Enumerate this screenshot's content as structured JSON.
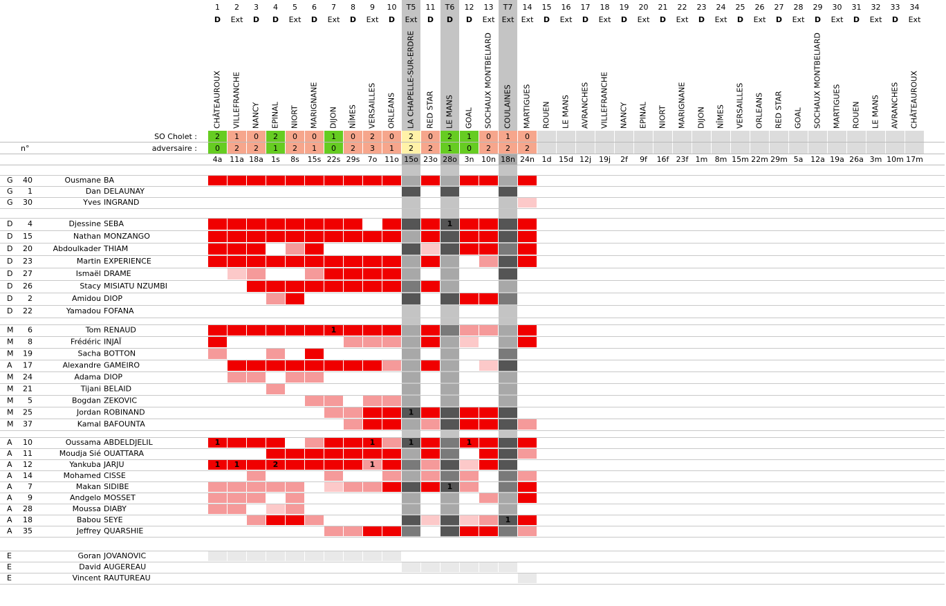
{
  "header": {
    "so_label": "SO Cholet :",
    "adv_label": "adversaire :",
    "num_label": "n°"
  },
  "matches": [
    {
      "n": "1",
      "venue": "D",
      "opponent": "CHÂTEAUROUX",
      "cholet": 2,
      "adversaire": 0,
      "date": "4a"
    },
    {
      "n": "2",
      "venue": "Ext",
      "opponent": "VILLEFRANCHE",
      "cholet": 1,
      "adversaire": 2,
      "date": "11a"
    },
    {
      "n": "3",
      "venue": "D",
      "opponent": "NANCY",
      "cholet": 0,
      "adversaire": 2,
      "date": "18a"
    },
    {
      "n": "4",
      "venue": "D",
      "opponent": "EPINAL",
      "cholet": 2,
      "adversaire": 1,
      "date": "1s"
    },
    {
      "n": "5",
      "venue": "Ext",
      "opponent": "NIORT",
      "cholet": 0,
      "adversaire": 2,
      "date": "8s"
    },
    {
      "n": "6",
      "venue": "D",
      "opponent": "MARIGNANE",
      "cholet": 0,
      "adversaire": 1,
      "date": "15s"
    },
    {
      "n": "7",
      "venue": "Ext",
      "opponent": "DIJON",
      "cholet": 1,
      "adversaire": 0,
      "date": "22s"
    },
    {
      "n": "8",
      "venue": "D",
      "opponent": "NÎMES",
      "cholet": 0,
      "adversaire": 2,
      "date": "29s"
    },
    {
      "n": "9",
      "venue": "Ext",
      "opponent": "VERSAILLES",
      "cholet": 2,
      "adversaire": 3,
      "date": "7o"
    },
    {
      "n": "10",
      "venue": "D",
      "opponent": "ORLEANS",
      "cholet": 0,
      "adversaire": 1,
      "date": "11o"
    },
    {
      "n": "T5",
      "venue": "Ext",
      "opponent": "LA CHAPELLE-SUR-ERDRE",
      "cholet": 2,
      "adversaire": 2,
      "date": "15o"
    },
    {
      "n": "11",
      "venue": "D",
      "opponent": "RED STAR",
      "cholet": 0,
      "adversaire": 2,
      "date": "23o"
    },
    {
      "n": "T6",
      "venue": "D",
      "opponent": "LE MANS",
      "cholet": 2,
      "adversaire": 1,
      "date": "28o"
    },
    {
      "n": "12",
      "venue": "D",
      "opponent": "GOAL",
      "cholet": 1,
      "adversaire": 0,
      "date": "3n"
    },
    {
      "n": "13",
      "venue": "Ext",
      "opponent": "SOCHAUX MONTBELIARD",
      "cholet": 0,
      "adversaire": 2,
      "date": "10n"
    },
    {
      "n": "T7",
      "venue": "Ext",
      "opponent": "COULAINES",
      "cholet": 1,
      "adversaire": 2,
      "date": "18n"
    },
    {
      "n": "14",
      "venue": "Ext",
      "opponent": "MARTIGUES",
      "cholet": 0,
      "adversaire": 2,
      "date": "24n"
    },
    {
      "n": "15",
      "venue": "D",
      "opponent": "ROUEN",
      "cholet": null,
      "adversaire": null,
      "date": "1d"
    },
    {
      "n": "16",
      "venue": "Ext",
      "opponent": "LE MANS",
      "cholet": null,
      "adversaire": null,
      "date": "15d"
    },
    {
      "n": "17",
      "venue": "D",
      "opponent": "AVRANCHES",
      "cholet": null,
      "adversaire": null,
      "date": "12j"
    },
    {
      "n": "18",
      "venue": "Ext",
      "opponent": "VILLEFRANCHE",
      "cholet": null,
      "adversaire": null,
      "date": "19j"
    },
    {
      "n": "19",
      "venue": "D",
      "opponent": "NANCY",
      "cholet": null,
      "adversaire": null,
      "date": "2f"
    },
    {
      "n": "20",
      "venue": "Ext",
      "opponent": "EPINAL",
      "cholet": null,
      "adversaire": null,
      "date": "9f"
    },
    {
      "n": "21",
      "venue": "D",
      "opponent": "NIORT",
      "cholet": null,
      "adversaire": null,
      "date": "16f"
    },
    {
      "n": "22",
      "venue": "Ext",
      "opponent": "MARIGNANE",
      "cholet": null,
      "adversaire": null,
      "date": "23f"
    },
    {
      "n": "23",
      "venue": "D",
      "opponent": "DIJON",
      "cholet": null,
      "adversaire": null,
      "date": "1m"
    },
    {
      "n": "24",
      "venue": "Ext",
      "opponent": "NÎMES",
      "cholet": null,
      "adversaire": null,
      "date": "8m"
    },
    {
      "n": "25",
      "venue": "D",
      "opponent": "VERSAILLES",
      "cholet": null,
      "adversaire": null,
      "date": "15m"
    },
    {
      "n": "26",
      "venue": "Ext",
      "opponent": "ORLEANS",
      "cholet": null,
      "adversaire": null,
      "date": "22m"
    },
    {
      "n": "27",
      "venue": "D",
      "opponent": "RED STAR",
      "cholet": null,
      "adversaire": null,
      "date": "29m"
    },
    {
      "n": "28",
      "venue": "Ext",
      "opponent": "GOAL",
      "cholet": null,
      "adversaire": null,
      "date": "5a"
    },
    {
      "n": "29",
      "venue": "D",
      "opponent": "SOCHAUX MONTBELIARD",
      "cholet": null,
      "adversaire": null,
      "date": "12a"
    },
    {
      "n": "30",
      "venue": "Ext",
      "opponent": "MARTIGUES",
      "cholet": null,
      "adversaire": null,
      "date": "19a"
    },
    {
      "n": "31",
      "venue": "D",
      "opponent": "ROUEN",
      "cholet": null,
      "adversaire": null,
      "date": "26a"
    },
    {
      "n": "32",
      "venue": "Ext",
      "opponent": "LE MANS",
      "cholet": null,
      "adversaire": null,
      "date": "3m"
    },
    {
      "n": "33",
      "venue": "D",
      "opponent": "AVRANCHES",
      "cholet": null,
      "adversaire": null,
      "date": "10m"
    },
    {
      "n": "34",
      "venue": "Ext",
      "opponent": "CHÂTEAUROUX",
      "cholet": null,
      "adversaire": null,
      "date": "17m"
    }
  ],
  "groups": [
    {
      "rows": [
        {
          "pos": "G",
          "num": "40",
          "first": "Ousmane",
          "last": "BA",
          "cells": "RRRRRRRRRRHRHRRHR",
          "goals": []
        },
        {
          "pos": "G",
          "num": "1",
          "first": "Dan",
          "last": "DELAUNAY",
          "cells": "..........K.K..K.",
          "goals": []
        },
        {
          "pos": "G",
          "num": "30",
          "first": "Yves",
          "last": "INGRAND",
          "cells": "................L",
          "goals": []
        }
      ]
    },
    {
      "rows": [
        {
          "pos": "D",
          "num": "4",
          "first": "Djessine",
          "last": "SEBA",
          "cells": "RRRRRRRR.RKRKRRKR",
          "goals": [
            {
              "i": 12,
              "t": "1"
            }
          ]
        },
        {
          "pos": "D",
          "num": "15",
          "first": "Nathan",
          "last": "MONZANGO",
          "cells": "RRRRRRRRRRHRKRRKR",
          "goals": []
        },
        {
          "pos": "D",
          "num": "20",
          "first": "Abdoulkader",
          "last": "THIAM",
          "cells": "RRR.PR....KLKRRMR",
          "goals": []
        },
        {
          "pos": "D",
          "num": "23",
          "first": "Martin",
          "last": "EXPERIENCE",
          "cells": "RRRRRRRRRRHRH.PKR",
          "goals": []
        },
        {
          "pos": "D",
          "num": "27",
          "first": "Ismaël",
          "last": "DRAME",
          "cells": ".LP..PRRRRH.H..K.",
          "goals": []
        },
        {
          "pos": "D",
          "num": "26",
          "first": "Stacy",
          "last": "MISIATU NZUMBI",
          "cells": "..RRRRRRRRMRH..H.",
          "goals": []
        },
        {
          "pos": "D",
          "num": "2",
          "first": "Amidou",
          "last": "DIOP",
          "cells": "...PR.....K.KRRM.",
          "goals": []
        },
        {
          "pos": "D",
          "num": "22",
          "first": "Yamadou",
          "last": "FOFANA",
          "cells": ".................",
          "goals": []
        }
      ]
    },
    {
      "rows": [
        {
          "pos": "M",
          "num": "6",
          "first": "Tom",
          "last": "RENAUD",
          "cells": "RRRRRRRRRRHRMPPHR",
          "goals": [
            {
              "i": 6,
              "t": "1"
            }
          ]
        },
        {
          "pos": "M",
          "num": "8",
          "first": "Frédéric",
          "last": "INJAÏ",
          "cells": "R......PPPHRHL.HR",
          "goals": []
        },
        {
          "pos": "M",
          "num": "19",
          "first": "Sacha",
          "last": "BOTTON",
          "cells": "P..P.R....H.H..M.",
          "goals": []
        },
        {
          "pos": "A",
          "num": "17",
          "first": "Alexandre",
          "last": "GAMEIRO",
          "cells": ".RRRRRRRRPHRH.LK.",
          "goals": []
        },
        {
          "pos": "M",
          "num": "24",
          "first": "Adama",
          "last": "DIOP",
          "cells": ".PP.PP....H.H..H.",
          "goals": []
        },
        {
          "pos": "M",
          "num": "21",
          "first": "Tijani",
          "last": "BELAID",
          "cells": "...P......H.H..H.",
          "goals": []
        },
        {
          "pos": "M",
          "num": "5",
          "first": "Bogdan",
          "last": "ZEKOVIC",
          "cells": ".....PP.PPH.H..H.",
          "goals": []
        },
        {
          "pos": "M",
          "num": "25",
          "first": "Jordan",
          "last": "ROBINAND",
          "cells": "......PPRRKRKRRK.",
          "goals": [
            {
              "i": 10,
              "t": "1"
            }
          ]
        },
        {
          "pos": "M",
          "num": "37",
          "first": "Kamal",
          "last": "BAFOUNTA",
          "cells": ".......PRRHPKRRKP",
          "goals": []
        }
      ]
    },
    {
      "rows": [
        {
          "pos": "A",
          "num": "10",
          "first": "Oussama",
          "last": "ABDELDJELIL",
          "cells": "RRRR.PRRRPKRMRRKR",
          "goals": [
            {
              "i": 0,
              "t": "1"
            },
            {
              "i": 8,
              "t": "1"
            },
            {
              "i": 10,
              "t": "1"
            },
            {
              "i": 13,
              "t": "1"
            }
          ]
        },
        {
          "pos": "A",
          "num": "11",
          "first": "Moudja Sié",
          "last": "OUATTARA",
          "cells": "...RRRRRRRHRM.RKP",
          "goals": []
        },
        {
          "pos": "A",
          "num": "12",
          "first": "Yankuba",
          "last": "JARJU",
          "cells": "RRRRRRRRPRMPKLRK.",
          "goals": [
            {
              "i": 0,
              "t": "1"
            },
            {
              "i": 1,
              "t": "1"
            },
            {
              "i": 3,
              "t": "2"
            },
            {
              "i": 8,
              "t": "1"
            }
          ]
        },
        {
          "pos": "A",
          "num": "14",
          "first": "Mohamed",
          "last": "CISSE",
          "cells": "..P...P..PHPMP.MP",
          "goals": []
        },
        {
          "pos": "A",
          "num": "7",
          "first": "Makan",
          "last": "SIDIBE",
          "cells": "PPPPP.LPPRKRKP.MR",
          "goals": [
            {
              "i": 12,
              "t": "1"
            }
          ]
        },
        {
          "pos": "A",
          "num": "9",
          "first": "Andgelo",
          "last": "MOSSET",
          "cells": "PPP.P.....H.H.PHR",
          "goals": []
        },
        {
          "pos": "A",
          "num": "28",
          "first": "Moussa",
          "last": "DIABY",
          "cells": "PP.LP.....H.H..H.",
          "goals": []
        },
        {
          "pos": "A",
          "num": "18",
          "first": "Babou",
          "last": "SEYE",
          "cells": "..PRRP....KLKLPKR",
          "goals": [
            {
              "i": 15,
              "t": "1"
            }
          ]
        },
        {
          "pos": "A",
          "num": "35",
          "first": "Jeffrey",
          "last": "QUARSHIE",
          "cells": "......PPRRM.KRRMP",
          "goals": []
        }
      ]
    },
    {
      "rows": [
        {
          "pos": "E",
          "first": "Goran",
          "last": "JOVANOVIC",
          "cells": "EEEEEEEEEE.......",
          "goals": []
        },
        {
          "pos": "E",
          "first": "David",
          "last": "AUGEREAU",
          "cells": "..........EEEEEE.",
          "goals": []
        },
        {
          "pos": "E",
          "first": "Vincent",
          "last": "RAUTUREAU",
          "cells": "................E",
          "goals": []
        }
      ]
    }
  ]
}
